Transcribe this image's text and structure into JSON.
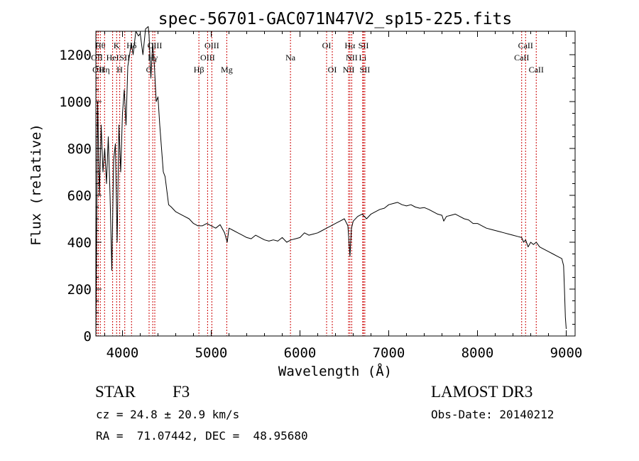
{
  "chart_data": {
    "type": "line",
    "title": "spec-56701-GAC071N47V2_sp15-225.fits",
    "xlabel": "Wavelength (Å)",
    "ylabel": "Flux (relative)",
    "xlim": [
      3700,
      9100
    ],
    "ylim": [
      0,
      1300
    ],
    "xticks": [
      {
        "value": 4000,
        "label": "4000"
      },
      {
        "value": 5000,
        "label": "5000"
      },
      {
        "value": 6000,
        "label": "6000"
      },
      {
        "value": 7000,
        "label": "7000"
      },
      {
        "value": 8000,
        "label": "8000"
      },
      {
        "value": 9000,
        "label": "9000"
      }
    ],
    "yticks": [
      {
        "value": 0,
        "label": "0"
      },
      {
        "value": 200,
        "label": "200"
      },
      {
        "value": 400,
        "label": "400"
      },
      {
        "value": 600,
        "label": "600"
      },
      {
        "value": 800,
        "label": "800"
      },
      {
        "value": 1000,
        "label": "1000"
      },
      {
        "value": 1200,
        "label": "1200"
      }
    ],
    "line_color": "#000000",
    "marker_color": "#cc0000",
    "series": [
      {
        "name": "flux",
        "x": [
          3700,
          3720,
          3740,
          3760,
          3780,
          3800,
          3820,
          3840,
          3860,
          3880,
          3900,
          3920,
          3940,
          3960,
          3980,
          4000,
          4020,
          4040,
          4060,
          4080,
          4100,
          4120,
          4150,
          4180,
          4200,
          4230,
          4260,
          4290,
          4300,
          4320,
          4340,
          4360,
          4380,
          4400,
          4420,
          4440,
          4460,
          4480,
          4500,
          4520,
          4550,
          4600,
          4650,
          4700,
          4750,
          4800,
          4850,
          4900,
          4950,
          5000,
          5050,
          5100,
          5150,
          5180,
          5200,
          5250,
          5300,
          5350,
          5400,
          5450,
          5500,
          5550,
          5600,
          5650,
          5700,
          5750,
          5800,
          5850,
          5900,
          5950,
          6000,
          6050,
          6100,
          6150,
          6200,
          6250,
          6300,
          6350,
          6400,
          6450,
          6500,
          6540,
          6563,
          6580,
          6600,
          6650,
          6700,
          6750,
          6800,
          6850,
          6900,
          6950,
          7000,
          7050,
          7100,
          7150,
          7200,
          7250,
          7300,
          7350,
          7400,
          7450,
          7500,
          7550,
          7600,
          7620,
          7650,
          7700,
          7750,
          7800,
          7850,
          7900,
          7950,
          8000,
          8050,
          8100,
          8150,
          8200,
          8250,
          8300,
          8350,
          8400,
          8450,
          8498,
          8520,
          8542,
          8570,
          8600,
          8630,
          8662,
          8700,
          8750,
          8800,
          8850,
          8900,
          8950,
          8970,
          8980,
          8990,
          9000
        ],
        "y": [
          0,
          1000,
          600,
          900,
          700,
          800,
          650,
          850,
          600,
          280,
          750,
          820,
          400,
          900,
          700,
          950,
          1050,
          900,
          1150,
          1200,
          1250,
          1200,
          1300,
          1280,
          1290,
          1200,
          1310,
          1320,
          1280,
          1100,
          1250,
          1150,
          1000,
          1020,
          900,
          800,
          700,
          680,
          620,
          560,
          550,
          530,
          520,
          510,
          500,
          480,
          470,
          470,
          480,
          470,
          460,
          475,
          440,
          400,
          460,
          450,
          440,
          430,
          420,
          415,
          430,
          420,
          410,
          405,
          410,
          405,
          420,
          400,
          410,
          415,
          420,
          440,
          430,
          435,
          440,
          450,
          460,
          470,
          480,
          490,
          500,
          470,
          340,
          460,
          490,
          510,
          520,
          500,
          520,
          530,
          540,
          545,
          560,
          565,
          570,
          560,
          555,
          560,
          550,
          545,
          548,
          540,
          530,
          520,
          515,
          490,
          510,
          515,
          520,
          510,
          500,
          495,
          480,
          480,
          470,
          460,
          455,
          450,
          445,
          440,
          435,
          430,
          425,
          420,
          400,
          410,
          380,
          400,
          390,
          400,
          380,
          370,
          360,
          350,
          340,
          330,
          300,
          200,
          80,
          30
        ]
      }
    ],
    "line_markers": [
      {
        "x": 3712,
        "label": "OII",
        "row": 1
      },
      {
        "x": 3728,
        "label": "OII",
        "row": 2
      },
      {
        "x": 3750,
        "label": "Hθ",
        "row": 0
      },
      {
        "x": 3798,
        "label": "Hη",
        "row": 2
      },
      {
        "x": 3889,
        "label": "HeI",
        "row": 1
      },
      {
        "x": 3934,
        "label": "K",
        "row": 0
      },
      {
        "x": 3969,
        "label": "H",
        "row": 2
      },
      {
        "x": 4026,
        "label": "SII",
        "row": 1
      },
      {
        "x": 4102,
        "label": "Hδ",
        "row": 0
      },
      {
        "x": 4300,
        "label": "G",
        "row": 2
      },
      {
        "x": 4341,
        "label": "Hγ",
        "row": 1
      },
      {
        "x": 4364,
        "label": "OIII",
        "row": 0
      },
      {
        "x": 4861,
        "label": "Hβ",
        "row": 2
      },
      {
        "x": 4959,
        "label": "OIII",
        "row": 1
      },
      {
        "x": 5007,
        "label": "OIII",
        "row": 0
      },
      {
        "x": 5175,
        "label": "Mg",
        "row": 2
      },
      {
        "x": 5893,
        "label": "Na",
        "row": 1
      },
      {
        "x": 6300,
        "label": "OI",
        "row": 0
      },
      {
        "x": 6364,
        "label": "OI",
        "row": 2
      },
      {
        "x": 6548,
        "label": "NII",
        "row": 2
      },
      {
        "x": 6563,
        "label": "Hα",
        "row": 0
      },
      {
        "x": 6583,
        "label": "NII",
        "row": 1
      },
      {
        "x": 6707,
        "label": "Li",
        "row": 1
      },
      {
        "x": 6716,
        "label": "SII",
        "row": 0
      },
      {
        "x": 6731,
        "label": "SII",
        "row": 2
      },
      {
        "x": 8498,
        "label": "CaII",
        "row": 1
      },
      {
        "x": 8542,
        "label": "CaII",
        "row": 0
      },
      {
        "x": 8662,
        "label": "CaII",
        "row": 2
      }
    ]
  },
  "info": {
    "object_class": "STAR",
    "subclass": "F3",
    "survey": "LAMOST DR3",
    "redshift": "cz = 24.8 ± 20.9 km/s",
    "obs_date": "Obs-Date: 20140212",
    "coordinates": "RA =  71.07442, DEC =  48.95680"
  }
}
